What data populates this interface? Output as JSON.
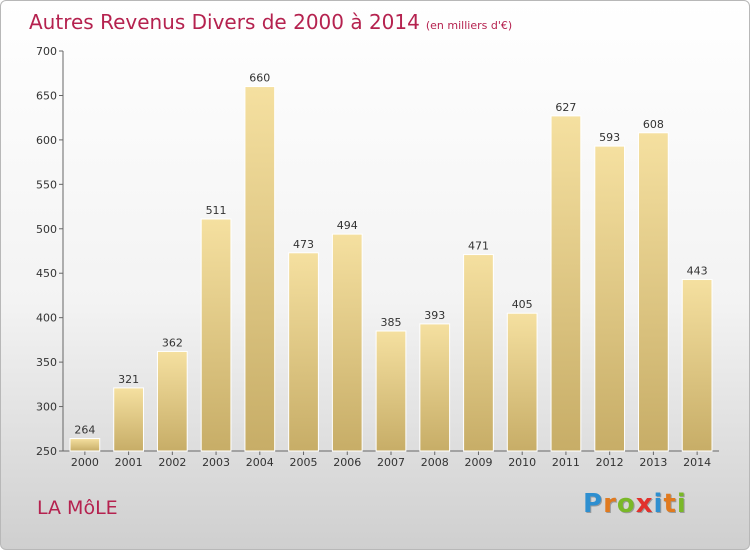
{
  "header": {
    "title": "Autres Revenus Divers de 2000 à 2014",
    "unit": "(en milliers d'€)"
  },
  "footer": {
    "commune": "LA MôLE",
    "logo_letters": [
      "P",
      "r",
      "o",
      "x",
      "i",
      "t",
      "i"
    ],
    "logo_colors": [
      "#2e8fd0",
      "#e07a1f",
      "#7ab828",
      "#e2312c",
      "#2e8fd0",
      "#e07a1f",
      "#7ab828"
    ]
  },
  "colors": {
    "title": "#b5224f",
    "bar_light": "#f5e0a0",
    "bar_dark": "#c7ad67",
    "axis": "#666666"
  },
  "chart_data": {
    "type": "bar",
    "title": "Autres Revenus Divers de 2000 à 2014",
    "subtitle": "(en milliers d'€)",
    "xlabel": "",
    "ylabel": "",
    "categories": [
      "2000",
      "2001",
      "2002",
      "2003",
      "2004",
      "2005",
      "2006",
      "2007",
      "2008",
      "2009",
      "2010",
      "2011",
      "2012",
      "2013",
      "2014"
    ],
    "values": [
      264,
      321,
      362,
      511,
      660,
      473,
      494,
      385,
      393,
      471,
      405,
      627,
      593,
      608,
      443
    ],
    "ylim": [
      250,
      700
    ],
    "yticks": [
      250,
      300,
      350,
      400,
      450,
      500,
      550,
      600,
      650,
      700
    ],
    "grid": false,
    "legend": "none"
  }
}
